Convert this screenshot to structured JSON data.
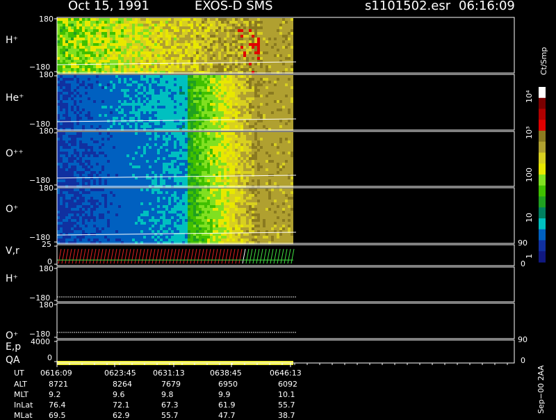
{
  "header": {
    "date": "Oct 15, 1991",
    "instrument": "EXOS-D SMS",
    "file": "s1101502.esr",
    "time": "06:16:09"
  },
  "panels": [
    {
      "label": "H⁺",
      "top": "180",
      "bottom": "−180"
    },
    {
      "label": "He⁺",
      "top": "180",
      "bottom": "−180"
    },
    {
      "label": "O⁺⁺",
      "top": "180",
      "bottom": "−180"
    },
    {
      "label": "O⁺",
      "top": "180",
      "bottom": "−180"
    },
    {
      "label": "V,r",
      "top": "25",
      "bottom": "0",
      "right_top": "90",
      "right_bottom": "0"
    },
    {
      "label": "H⁺",
      "top": "180",
      "bottom": "−180"
    },
    {
      "label": "O⁺",
      "top": "180",
      "bottom": "−180"
    },
    {
      "label": "E,p",
      "label2": "QA",
      "top": "4000",
      "bottom": "0",
      "right_top": "90",
      "right_bottom": "0"
    }
  ],
  "colorbar": {
    "unit": "Ct/Smp",
    "ticks": [
      "10⁴",
      "10³",
      "100",
      "10",
      "1"
    ],
    "colors": [
      "#ffffff",
      "#7a0000",
      "#b00000",
      "#e00000",
      "#8a7a20",
      "#b0a030",
      "#d8d020",
      "#e8e800",
      "#80e020",
      "#40c000",
      "#20a020",
      "#008060",
      "#00c0c0",
      "#0060c0",
      "#1030a0",
      "#101880"
    ]
  },
  "footer_note": "Sep−00 2AA",
  "table": {
    "row_labels": [
      "UT",
      "ALT",
      "MLT",
      "InLat",
      "MLat"
    ],
    "columns": [
      [
        "0616:09",
        "8721",
        "9.2",
        "76.4",
        "69.5"
      ],
      [
        "0623:45",
        "8264",
        "9.6",
        "72.1",
        "62.9"
      ],
      [
        "0631:13",
        "7679",
        "9.8",
        "67.3",
        "55.7"
      ],
      [
        "0638:45",
        "6950",
        "9.9",
        "61.9",
        "47.7"
      ],
      [
        "0646:13",
        "6092",
        "10.1",
        "55.7",
        "38.7"
      ]
    ]
  },
  "chart_data": {
    "type": "heatmap",
    "title": "Oct 15, 1991 EXOS-D SMS",
    "x_ticks": [
      "0616:09",
      "0623:45",
      "0631:13",
      "0638:45",
      "0646:13"
    ],
    "y_range": [
      -180,
      180
    ],
    "colorscale": "log",
    "colorbar_range": [
      1,
      10000
    ],
    "series": [
      {
        "name": "H⁺"
      },
      {
        "name": "He⁺"
      },
      {
        "name": "O⁺⁺"
      },
      {
        "name": "O⁺"
      }
    ]
  }
}
